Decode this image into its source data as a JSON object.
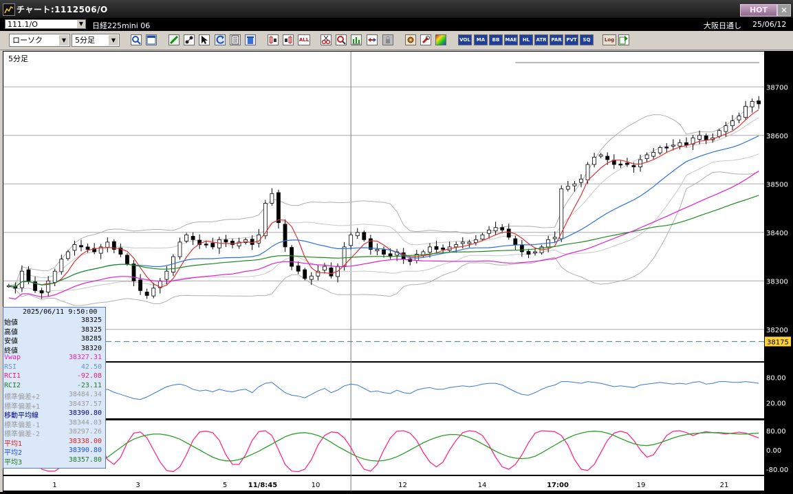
{
  "window": {
    "title": "チャート:1112506/O",
    "hot_label": "HOT",
    "close_label": "✕"
  },
  "header": {
    "symbol": "111.1/O",
    "name": "日経225mini 06",
    "venue": "大阪日通し",
    "date": "25/06/12"
  },
  "toolbar": {
    "chart_type": "ローソク",
    "interval": "5分足",
    "buttons": [
      "search-icon",
      "window-icon",
      "pen-icon",
      "fibonacci-icon",
      "cursor-icon",
      "back-icon",
      "sheet-icon",
      "trash-icon",
      "bar-left-icon",
      "bar-right-icon",
      "ALL",
      "scissors-icon",
      "magnify-icon",
      "chart-icon",
      "compare-icon",
      "lock-icon",
      "gear-icon",
      "wrench-icon",
      "palette-icon"
    ],
    "indicators": [
      "VOL",
      "MA",
      "BB",
      "MAE",
      "HL",
      "ATR",
      "PAR",
      "PVT",
      "SQ",
      "Log"
    ]
  },
  "chart": {
    "interval_label": "5分足",
    "price_ticks": [
      "38700",
      "38600",
      "38500",
      "38400",
      "38300",
      "38200"
    ],
    "current_price": "38175",
    "rsi_ticks": [
      "80.00",
      "20.00"
    ],
    "rci_ticks": [
      "80.00",
      "0.00",
      "-80.00"
    ],
    "x_labels": [
      "1",
      "3",
      "5",
      "11/8:45",
      "10",
      "12",
      "14",
      "17:00",
      "19",
      "21"
    ],
    "colors": {
      "candle": "#ffffff",
      "ma_short": "#e03030",
      "ma_mid": "#2a70e0",
      "ma_long": "#1e8a1e",
      "vwap": "#e020d0",
      "bollinger": "#8c8c8c",
      "rsi": "#3a78d8",
      "rci1": "#ff2a8a",
      "rci2": "#27a027",
      "price_marker": "#ffd23c"
    }
  },
  "info_panel": {
    "datetime": "2025/06/11  9:50:00",
    "rows": [
      {
        "label": "始値",
        "value": "38325",
        "color": "#000000"
      },
      {
        "label": "高値",
        "value": "38325",
        "color": "#000000"
      },
      {
        "label": "安値",
        "value": "38285",
        "color": "#000000"
      },
      {
        "label": "終値",
        "value": "38320",
        "color": "#000000"
      },
      {
        "label": "Vwap",
        "value": "38327.31",
        "color": "#e020d0"
      },
      {
        "label": "RSI",
        "value": "42.50",
        "color": "#6a8fd0"
      },
      {
        "label": "RCI1",
        "value": "-92.08",
        "color": "#e02070"
      },
      {
        "label": "RCI2",
        "value": "-23.11",
        "color": "#1e7a1e"
      },
      {
        "label": "標準偏差+2",
        "value": "38484.34",
        "color": "#9a9a9a"
      },
      {
        "label": "標準偏差+1",
        "value": "38437.57",
        "color": "#9a9a9a"
      },
      {
        "label": "移動平均線",
        "value": "38390.80",
        "color": "#000080"
      },
      {
        "label": "標準偏差-1",
        "value": "38344.03",
        "color": "#9a9a9a"
      },
      {
        "label": "標準偏差-2",
        "value": "38297.26",
        "color": "#9a9a9a"
      },
      {
        "label": "平均1",
        "value": "38338.00",
        "color": "#e02020"
      },
      {
        "label": "平均2",
        "value": "38390.80",
        "color": "#2050e0"
      },
      {
        "label": "平均3",
        "value": "38357.80",
        "color": "#1e7a1e"
      }
    ]
  },
  "chart_data": {
    "type": "line",
    "price_range": [
      38150,
      38760
    ],
    "close": [
      38290,
      38285,
      38320,
      38300,
      38280,
      38275,
      38300,
      38320,
      38345,
      38360,
      38375,
      38370,
      38365,
      38360,
      38370,
      38380,
      38365,
      38355,
      38335,
      38300,
      38280,
      38270,
      38285,
      38300,
      38320,
      38350,
      38380,
      38395,
      38385,
      38375,
      38375,
      38370,
      38385,
      38380,
      38375,
      38380,
      38385,
      38375,
      38395,
      38460,
      38480,
      38420,
      38370,
      38330,
      38320,
      38305,
      38310,
      38320,
      38330,
      38310,
      38330,
      38370,
      38395,
      38400,
      38385,
      38365,
      38365,
      38355,
      38350,
      38360,
      38345,
      38340,
      38355,
      38360,
      38370,
      38365,
      38365,
      38370,
      38375,
      38380,
      38380,
      38385,
      38395,
      38405,
      38410,
      38405,
      38390,
      38375,
      38360,
      38355,
      38360,
      38370,
      38385,
      38390,
      38490,
      38495,
      38500,
      38510,
      38540,
      38555,
      38560,
      38550,
      38540,
      38540,
      38540,
      38535,
      38550,
      38560,
      38565,
      38575,
      38575,
      38580,
      38585,
      38580,
      38595,
      38600,
      38590,
      38595,
      38610,
      38620,
      38630,
      38640,
      38660,
      38670,
      38665
    ],
    "rsi": [
      42,
      50,
      55,
      48,
      38,
      32,
      40,
      52,
      58,
      55,
      50,
      46,
      44,
      42,
      48,
      52,
      45,
      40,
      35,
      30,
      28,
      34,
      42,
      50,
      58,
      62,
      64,
      60,
      52,
      48,
      50,
      46,
      52,
      48,
      46,
      50,
      52,
      44,
      58,
      66,
      68,
      56,
      44,
      38,
      36,
      32,
      40,
      48,
      54,
      44,
      50,
      60,
      64,
      62,
      54,
      46,
      48,
      44,
      42,
      50,
      44,
      42,
      50,
      54,
      56,
      52,
      52,
      56,
      58,
      60,
      58,
      60,
      64,
      66,
      66,
      62,
      54,
      46,
      40,
      38,
      44,
      52,
      58,
      62,
      70,
      70,
      68,
      66,
      70,
      68,
      66,
      62,
      58,
      60,
      58,
      56,
      62,
      64,
      66,
      68,
      66,
      64,
      66,
      64,
      68,
      70,
      64,
      66,
      70,
      70,
      68,
      68,
      70,
      68,
      66
    ],
    "rci1": [
      60,
      72,
      60,
      20,
      -40,
      -80,
      -88,
      -88,
      -70,
      -30,
      30,
      70,
      78,
      60,
      20,
      -40,
      -60,
      -30,
      30,
      70,
      75,
      50,
      0,
      -50,
      -85,
      -90,
      -70,
      -20,
      40,
      75,
      78,
      72,
      40,
      -20,
      -60,
      -60,
      -20,
      40,
      76,
      80,
      60,
      0,
      -60,
      -88,
      -90,
      -80,
      -40,
      20,
      60,
      75,
      72,
      50,
      10,
      -40,
      -80,
      -88,
      -60,
      0,
      50,
      78,
      80,
      70,
      40,
      -10,
      -50,
      -70,
      -50,
      0,
      40,
      72,
      80,
      76,
      60,
      20,
      -30,
      -70,
      -80,
      -60,
      -20,
      30,
      70,
      80,
      78,
      76,
      60,
      20,
      -40,
      -80,
      -85,
      -60,
      -10,
      40,
      70,
      78,
      70,
      40,
      0,
      -30,
      -20,
      20,
      60,
      78,
      80,
      72,
      60,
      70,
      76,
      72,
      70,
      66,
      70,
      74,
      70,
      60,
      50
    ],
    "rci2": [
      70,
      65,
      55,
      40,
      20,
      0,
      -20,
      -40,
      -55,
      -65,
      -70,
      -72,
      -68,
      -60,
      -48,
      -30,
      -10,
      10,
      30,
      45,
      55,
      62,
      66,
      66,
      62,
      55,
      45,
      30,
      15,
      0,
      -15,
      -30,
      -40,
      -45,
      -45,
      -40,
      -30,
      -18,
      -5,
      10,
      25,
      40,
      55,
      65,
      70,
      72,
      68,
      60,
      48,
      32,
      15,
      0,
      -15,
      -28,
      -38,
      -44,
      -46,
      -44,
      -38,
      -28,
      -15,
      0,
      15,
      30,
      42,
      52,
      60,
      64,
      64,
      60,
      52,
      40,
      25,
      10,
      -5,
      -18,
      -28,
      -34,
      -36,
      -34,
      -26,
      -12,
      4,
      20,
      36,
      50,
      62,
      70,
      76,
      78,
      76,
      70,
      60,
      48,
      36,
      26,
      20,
      18,
      22,
      30,
      40,
      50,
      58,
      64,
      68,
      70,
      72,
      72,
      72,
      70,
      68,
      66,
      66,
      68,
      70
    ]
  }
}
